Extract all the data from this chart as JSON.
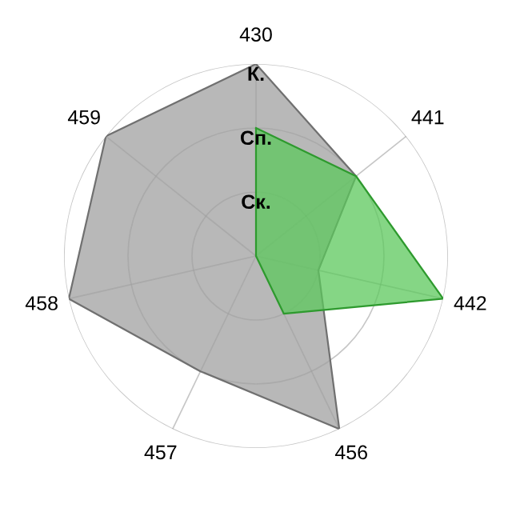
{
  "chart_data": {
    "type": "radar",
    "categories": [
      "430",
      "441",
      "442",
      "456",
      "457",
      "458",
      "459"
    ],
    "series": [
      {
        "color": "#b8b8b8",
        "values": [
          3,
          2,
          1,
          3,
          2,
          3,
          3
        ]
      },
      {
        "color": "#5cc85c",
        "values": [
          2,
          2,
          3,
          1,
          0,
          0,
          0
        ]
      }
    ],
    "ylim": [
      0,
      3
    ],
    "yticks": [
      {
        "value": 1,
        "label": "Ск."
      },
      {
        "value": 2,
        "label": "Сп."
      },
      {
        "value": 3,
        "label": "К."
      }
    ],
    "grid": true,
    "legend": false
  }
}
